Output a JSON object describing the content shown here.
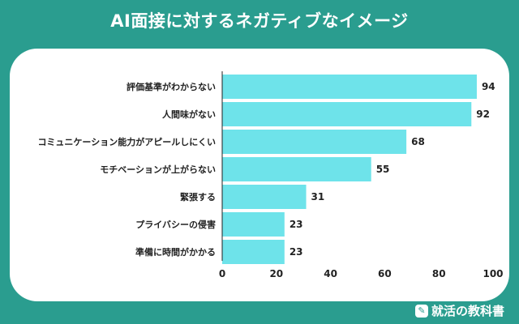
{
  "header": {
    "title": "AI面接に対するネガティブなイメージ"
  },
  "brand": {
    "name": "就活の教科書",
    "icon": "book-pen-icon"
  },
  "colors": {
    "background": "#2a9d8f",
    "bar": "#6ee3ea",
    "axis": "#222222"
  },
  "chart_data": {
    "type": "bar",
    "orientation": "horizontal",
    "title": "AI面接に対するネガティブなイメージ",
    "categories": [
      "評価基準がわからない",
      "人間味がない",
      "コミュニケーション能力がアピールしにくい",
      "モチベーションが上がらない",
      "緊張する",
      "プライバシーの侵害",
      "準備に時間がかかる"
    ],
    "values": [
      94,
      92,
      68,
      55,
      31,
      23,
      23
    ],
    "xlim": [
      0,
      100
    ],
    "xticks": [
      0,
      20,
      40,
      60,
      80,
      100
    ],
    "xlabel": "",
    "ylabel": "",
    "grid": false,
    "legend": "none"
  }
}
